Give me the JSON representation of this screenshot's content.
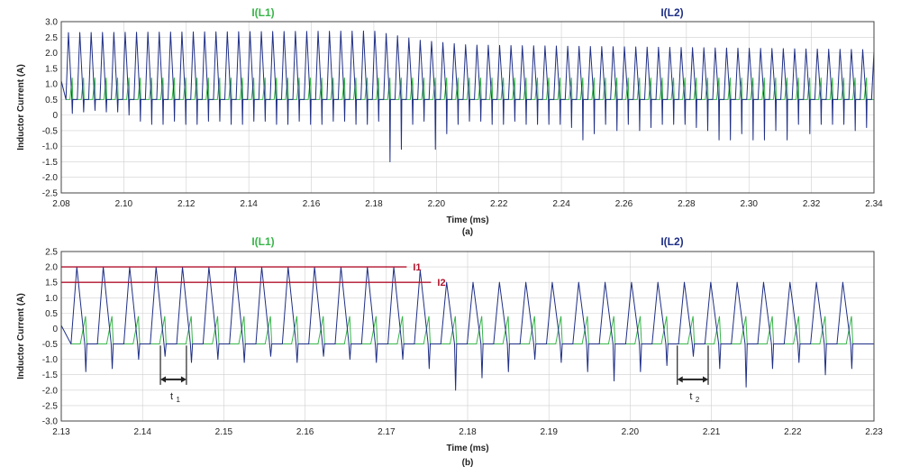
{
  "chart_data": [
    {
      "type": "line",
      "caption": "(a)",
      "xlabel": "Time (ms)",
      "ylabel": "Inductor Current (A)",
      "xlim": [
        2.08,
        2.34
      ],
      "ylim": [
        -2.5,
        3.0
      ],
      "xticks": [
        2.08,
        2.1,
        2.12,
        2.14,
        2.16,
        2.18,
        2.2,
        2.22,
        2.24,
        2.26,
        2.28,
        2.3,
        2.32,
        2.34
      ],
      "xtick_labels": [
        "2.08",
        "2.10",
        "2.12",
        "2.14",
        "2.16",
        "2.18",
        "2.20",
        "2.22",
        "2.24",
        "2.26",
        "2.28",
        "2.30",
        "2.32",
        "2.34"
      ],
      "yticks": [
        -2.5,
        -2.0,
        -1.5,
        -1.0,
        -0.5,
        0,
        0.5,
        1.0,
        1.5,
        2.0,
        2.5,
        3.0
      ],
      "ytick_labels": [
        "-2.5",
        "-2.0",
        "-1.5",
        "-1.0",
        "-0.5",
        "0",
        "0.5",
        "1.0",
        "1.5",
        "2.0",
        "2.5",
        "3.0"
      ],
      "grid": true,
      "series": [
        {
          "name": "I(L1)",
          "color": "#39b54a",
          "form": "sawtooth",
          "start": 2.0815,
          "period": 0.00363,
          "count": 72,
          "base": 0.5,
          "peak": 1.2
        },
        {
          "name": "I(L2)",
          "color": "#1f2f86",
          "form": "triangle_with_spikes",
          "start": 2.0815,
          "period": 0.00363,
          "count": 72,
          "base": 0.5,
          "peak_segments": [
            {
              "x": 2.0815,
              "peak": 2.65
            },
            {
              "x": 2.18,
              "peak": 2.7
            },
            {
              "x": 2.195,
              "peak": 2.4
            },
            {
              "x": 2.21,
              "peak": 2.25
            },
            {
              "x": 2.34,
              "peak": 2.1
            }
          ],
          "spikes": [
            0.05,
            0.1,
            0.15,
            0.1,
            0.1,
            0.0,
            -0.2,
            -0.3,
            -0.3,
            -0.2,
            -0.3,
            -0.3,
            -0.2,
            -0.2,
            -0.3,
            -0.3,
            -0.2,
            -0.2,
            -0.3,
            -0.3,
            -0.2,
            -0.3,
            -0.3,
            -0.2,
            -0.2,
            -0.3,
            -0.3,
            -0.2,
            -1.5,
            -1.1,
            -0.3,
            -0.2,
            -1.1,
            -0.6,
            -0.3,
            -0.2,
            -0.2,
            -0.3,
            -0.3,
            -0.2,
            -0.3,
            -0.3,
            -0.3,
            -0.3,
            -0.4,
            -0.8,
            -0.6,
            -0.3,
            -0.5,
            -0.3,
            -0.5,
            -0.4,
            -0.3,
            -0.3,
            -0.3,
            -0.4,
            -0.5,
            -0.8,
            -0.8,
            -0.6,
            -0.8,
            -0.8,
            -0.5,
            -0.8,
            -0.3,
            -0.6,
            -0.3,
            -0.3,
            -0.3,
            -0.5,
            -0.4,
            -0.8
          ]
        }
      ]
    },
    {
      "type": "line",
      "caption": "(b)",
      "xlabel": "Time (ms)",
      "ylabel": "Inductor Current (A)",
      "xlim": [
        2.13,
        2.23
      ],
      "ylim": [
        -3.0,
        2.5
      ],
      "xticks": [
        2.13,
        2.14,
        2.15,
        2.16,
        2.17,
        2.18,
        2.19,
        2.2,
        2.21,
        2.22,
        2.23
      ],
      "xtick_labels": [
        "2.13",
        "2.14",
        "2.15",
        "2.16",
        "2.17",
        "2.18",
        "2.19",
        "2.20",
        "2.21",
        "2.22",
        "2.23"
      ],
      "yticks": [
        -3.0,
        -2.5,
        -2.0,
        -1.5,
        -1.0,
        -0.5,
        0,
        0.5,
        1.0,
        1.5,
        2.0,
        2.5
      ],
      "ytick_labels": [
        "-3.0",
        "-2.5",
        "-2.0",
        "-1.5",
        "-1.0",
        "-0.5",
        "0",
        "0.5",
        "1.0",
        "1.5",
        "2.0",
        "2.5"
      ],
      "grid": true,
      "series": [
        {
          "name": "I(L1)",
          "color": "#39b54a",
          "form": "sawtooth",
          "start": 2.1312,
          "period": 0.00325,
          "count": 30,
          "base": -0.5,
          "peak": 0.4
        },
        {
          "name": "I(L2)",
          "color": "#1f2f86",
          "form": "triangle_with_spikes",
          "start": 2.1312,
          "period": 0.00325,
          "count": 30,
          "base": -0.5,
          "peak_segments": [
            {
              "x": 2.1312,
              "peak": 2.0
            },
            {
              "x": 2.1735,
              "peak": 2.0
            },
            {
              "x": 2.1765,
              "peak": 1.5
            },
            {
              "x": 2.23,
              "peak": 1.5
            }
          ],
          "spikes": [
            -1.4,
            -1.3,
            -1.0,
            -0.9,
            -1.1,
            -1.0,
            -1.1,
            -0.9,
            -1.1,
            -0.9,
            -1.0,
            -1.1,
            -1.0,
            -1.3,
            -2.0,
            -1.6,
            -1.4,
            -1.0,
            -1.1,
            -1.4,
            -1.7,
            -1.4,
            -1.2,
            -0.9,
            -1.3,
            -1.9,
            -1.3,
            -1.1,
            -1.5,
            -1.3
          ]
        }
      ],
      "annotations": [
        {
          "label": "I1",
          "value": 2.0,
          "x_from": 2.13,
          "x_to": 2.1725
        },
        {
          "label": "I2",
          "value": 1.5,
          "x_from": 2.13,
          "x_to": 2.1755
        }
      ],
      "dimensions": [
        {
          "label": "t",
          "sub": "1",
          "x_from": 2.1422,
          "x_to": 2.1454,
          "y": -1.65
        },
        {
          "label": "t",
          "sub": "2",
          "x_from": 2.2058,
          "x_to": 2.2096,
          "y": -1.65
        }
      ]
    }
  ]
}
